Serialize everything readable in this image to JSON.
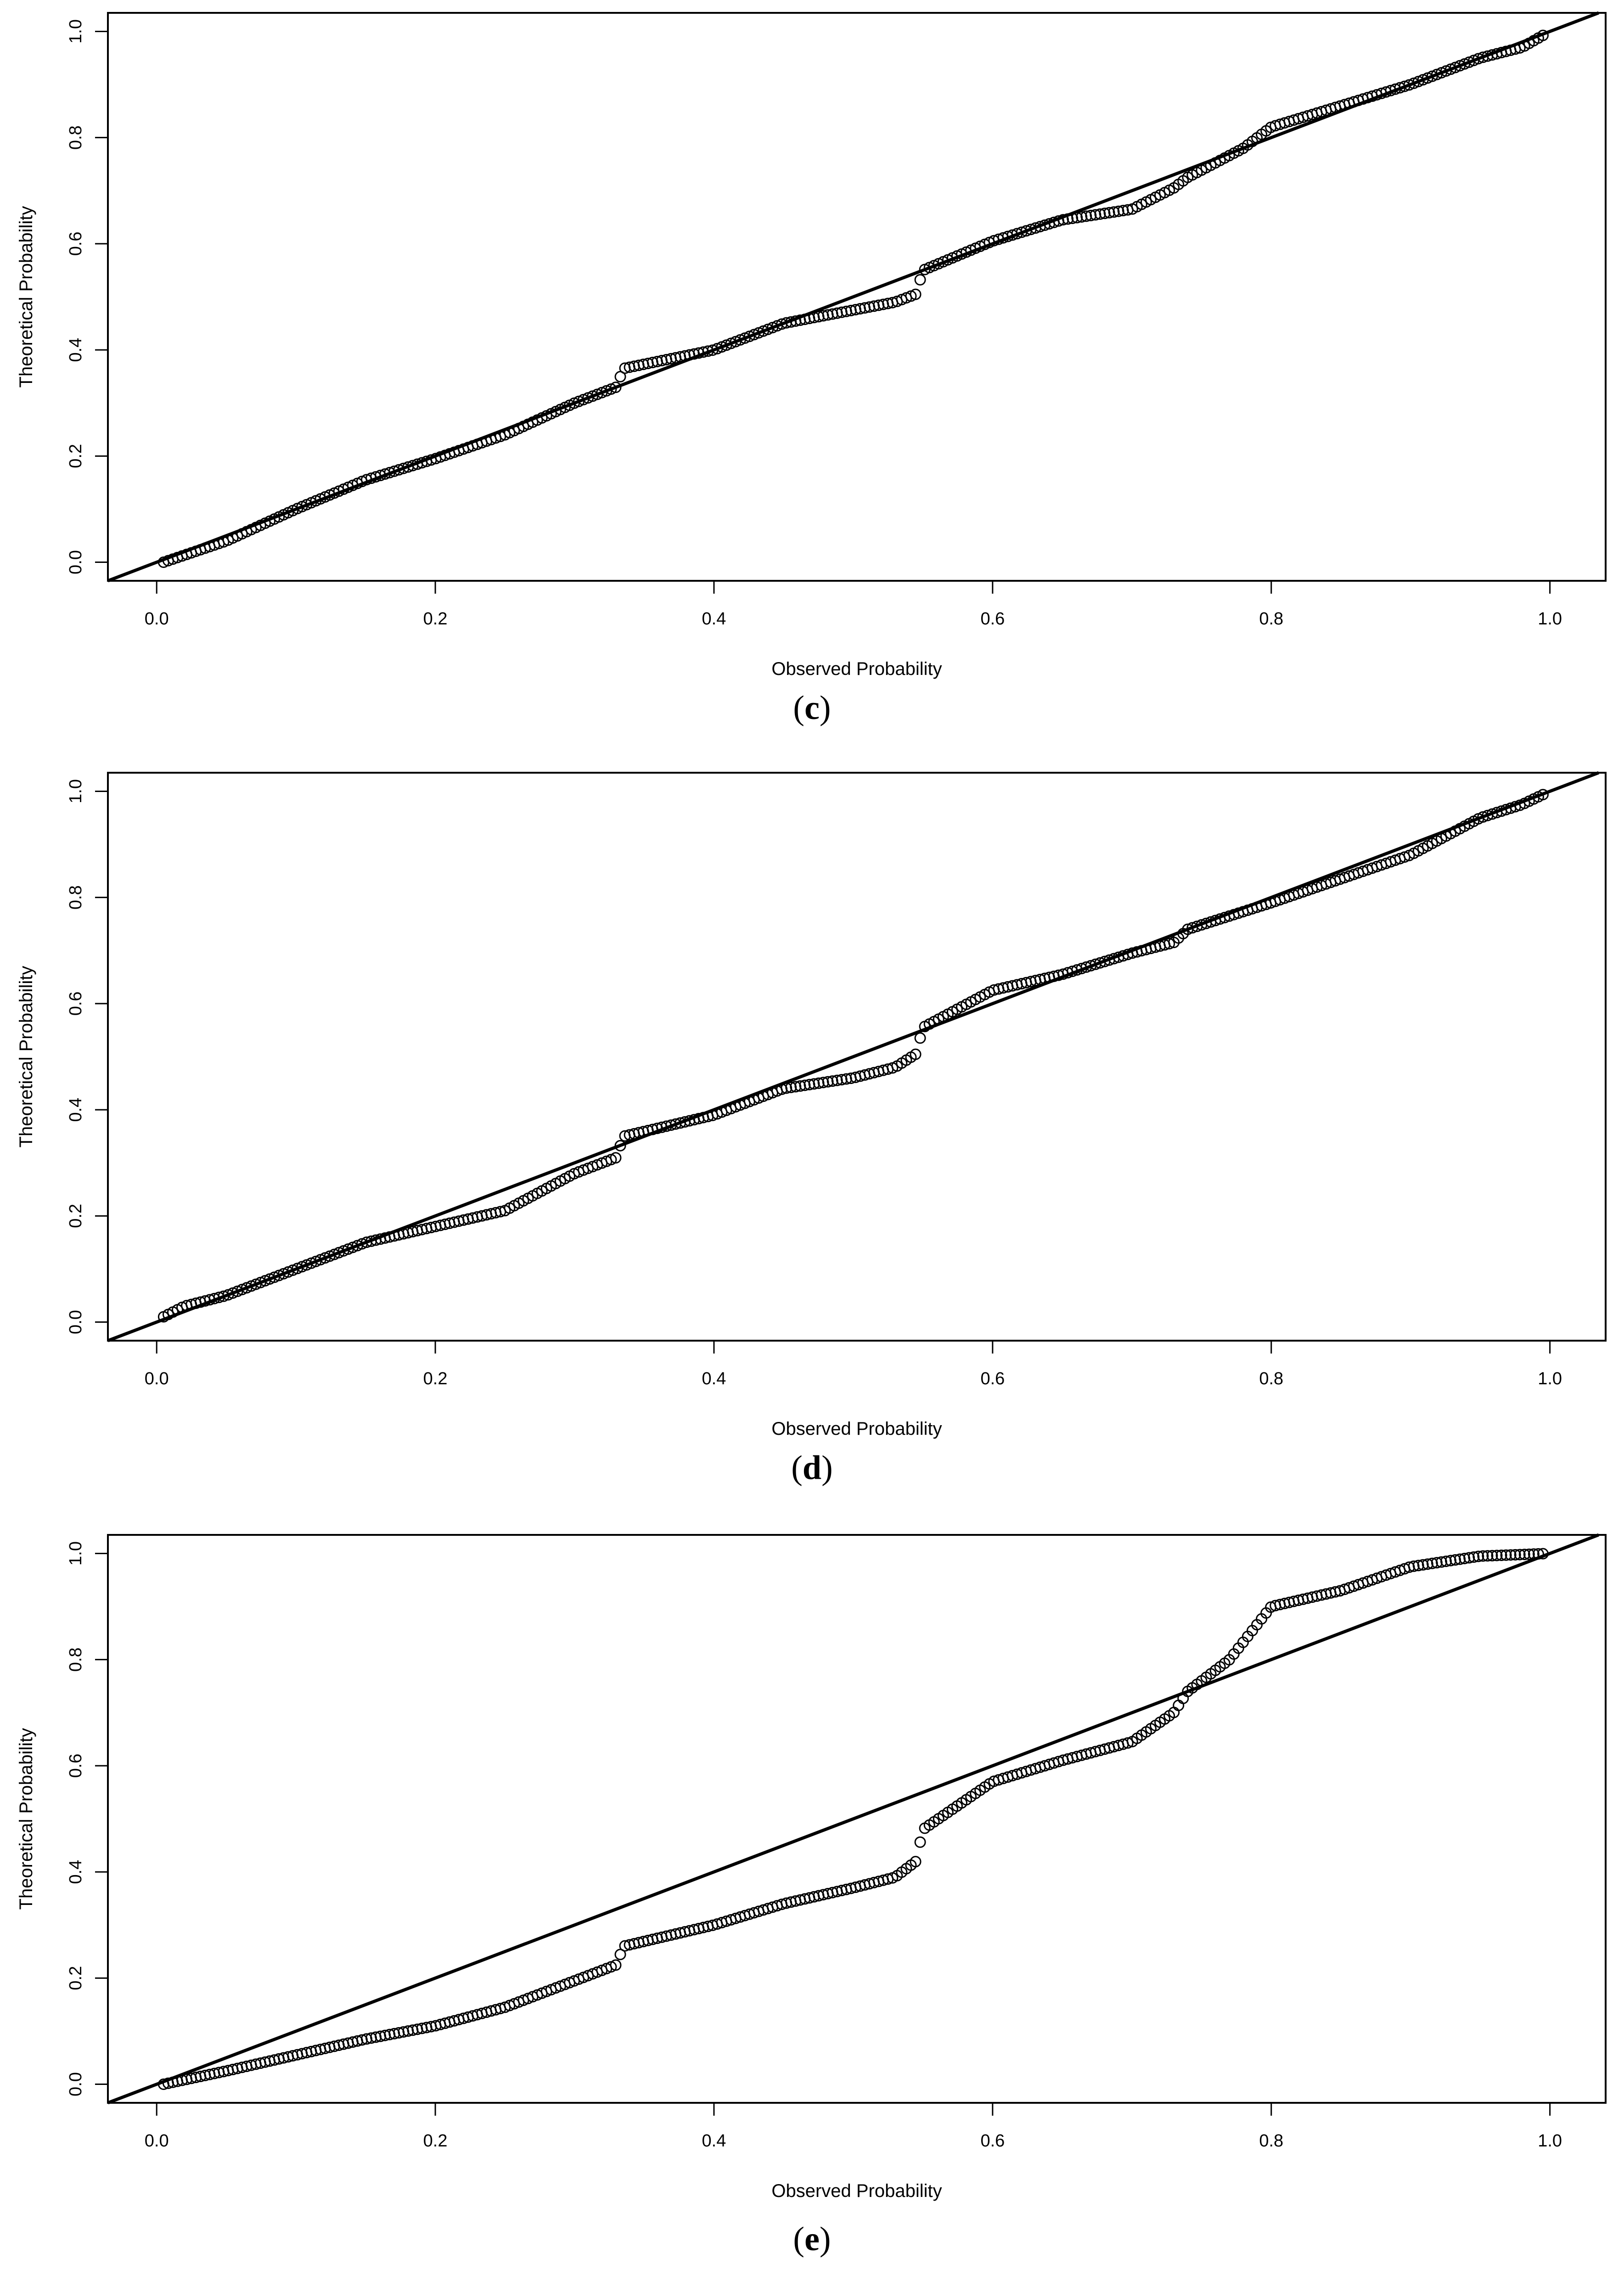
{
  "panels": [
    {
      "label_open": "(",
      "label_letter": "c",
      "label_close": ")"
    },
    {
      "label_open": "(",
      "label_letter": "d",
      "label_close": ")"
    },
    {
      "label_open": "(",
      "label_letter": "e",
      "label_close": ")"
    }
  ],
  "chart_data": [
    {
      "type": "scatter",
      "xlabel": "Observed Probability",
      "ylabel": "Theoretical Probability",
      "xlim": [
        -0.035,
        1.04
      ],
      "ylim": [
        -0.035,
        1.035
      ],
      "xticks": [
        "0.0",
        "0.2",
        "0.4",
        "0.6",
        "0.8",
        "1.0"
      ],
      "yticks": [
        "0.0",
        "0.2",
        "0.4",
        "0.6",
        "0.8",
        "1.0"
      ],
      "reference_line": "y = x",
      "grid": false,
      "curve": [
        [
          0.005,
          0.0
        ],
        [
          0.05,
          0.04
        ],
        [
          0.1,
          0.1
        ],
        [
          0.15,
          0.155
        ],
        [
          0.2,
          0.195
        ],
        [
          0.25,
          0.24
        ],
        [
          0.3,
          0.3
        ],
        [
          0.33,
          0.33
        ],
        [
          0.335,
          0.365
        ],
        [
          0.4,
          0.4
        ],
        [
          0.45,
          0.45
        ],
        [
          0.5,
          0.475
        ],
        [
          0.53,
          0.49
        ],
        [
          0.545,
          0.505
        ],
        [
          0.55,
          0.55
        ],
        [
          0.6,
          0.605
        ],
        [
          0.65,
          0.645
        ],
        [
          0.7,
          0.665
        ],
        [
          0.73,
          0.705
        ],
        [
          0.74,
          0.725
        ],
        [
          0.78,
          0.78
        ],
        [
          0.8,
          0.82
        ],
        [
          0.85,
          0.86
        ],
        [
          0.9,
          0.9
        ],
        [
          0.95,
          0.95
        ],
        [
          0.98,
          0.97
        ],
        [
          1.0,
          1.0
        ]
      ]
    },
    {
      "type": "scatter",
      "xlabel": "Observed Probability",
      "ylabel": "Theoretical Probability",
      "xlim": [
        -0.035,
        1.04
      ],
      "ylim": [
        -0.035,
        1.035
      ],
      "xticks": [
        "0.0",
        "0.2",
        "0.4",
        "0.6",
        "0.8",
        "1.0"
      ],
      "yticks": [
        "0.0",
        "0.2",
        "0.4",
        "0.6",
        "0.8",
        "1.0"
      ],
      "reference_line": "y = x",
      "grid": false,
      "curve": [
        [
          0.005,
          0.01
        ],
        [
          0.02,
          0.03
        ],
        [
          0.05,
          0.05
        ],
        [
          0.1,
          0.1
        ],
        [
          0.15,
          0.15
        ],
        [
          0.2,
          0.18
        ],
        [
          0.25,
          0.21
        ],
        [
          0.3,
          0.28
        ],
        [
          0.33,
          0.31
        ],
        [
          0.335,
          0.35
        ],
        [
          0.4,
          0.39
        ],
        [
          0.45,
          0.44
        ],
        [
          0.5,
          0.46
        ],
        [
          0.53,
          0.48
        ],
        [
          0.545,
          0.505
        ],
        [
          0.55,
          0.555
        ],
        [
          0.6,
          0.625
        ],
        [
          0.65,
          0.655
        ],
        [
          0.7,
          0.695
        ],
        [
          0.73,
          0.715
        ],
        [
          0.74,
          0.74
        ],
        [
          0.8,
          0.79
        ],
        [
          0.85,
          0.835
        ],
        [
          0.9,
          0.88
        ],
        [
          0.95,
          0.95
        ],
        [
          0.98,
          0.975
        ],
        [
          1.0,
          1.0
        ]
      ]
    },
    {
      "type": "scatter",
      "xlabel": "Observed Probability",
      "ylabel": "Theoretical Probability",
      "xlim": [
        -0.035,
        1.04
      ],
      "ylim": [
        -0.035,
        1.035
      ],
      "xticks": [
        "0.0",
        "0.2",
        "0.4",
        "0.6",
        "0.8",
        "1.0"
      ],
      "yticks": [
        "0.0",
        "0.2",
        "0.4",
        "0.6",
        "0.8",
        "1.0"
      ],
      "reference_line": "y = x",
      "grid": false,
      "curve": [
        [
          0.005,
          0.0
        ],
        [
          0.05,
          0.025
        ],
        [
          0.1,
          0.055
        ],
        [
          0.15,
          0.085
        ],
        [
          0.2,
          0.11
        ],
        [
          0.25,
          0.145
        ],
        [
          0.3,
          0.195
        ],
        [
          0.33,
          0.225
        ],
        [
          0.335,
          0.26
        ],
        [
          0.4,
          0.3
        ],
        [
          0.45,
          0.34
        ],
        [
          0.5,
          0.37
        ],
        [
          0.53,
          0.39
        ],
        [
          0.545,
          0.42
        ],
        [
          0.55,
          0.48
        ],
        [
          0.6,
          0.57
        ],
        [
          0.65,
          0.61
        ],
        [
          0.7,
          0.645
        ],
        [
          0.73,
          0.7
        ],
        [
          0.74,
          0.74
        ],
        [
          0.77,
          0.8
        ],
        [
          0.8,
          0.9
        ],
        [
          0.85,
          0.93
        ],
        [
          0.9,
          0.975
        ],
        [
          0.95,
          0.995
        ],
        [
          1.0,
          1.0
        ]
      ]
    }
  ]
}
